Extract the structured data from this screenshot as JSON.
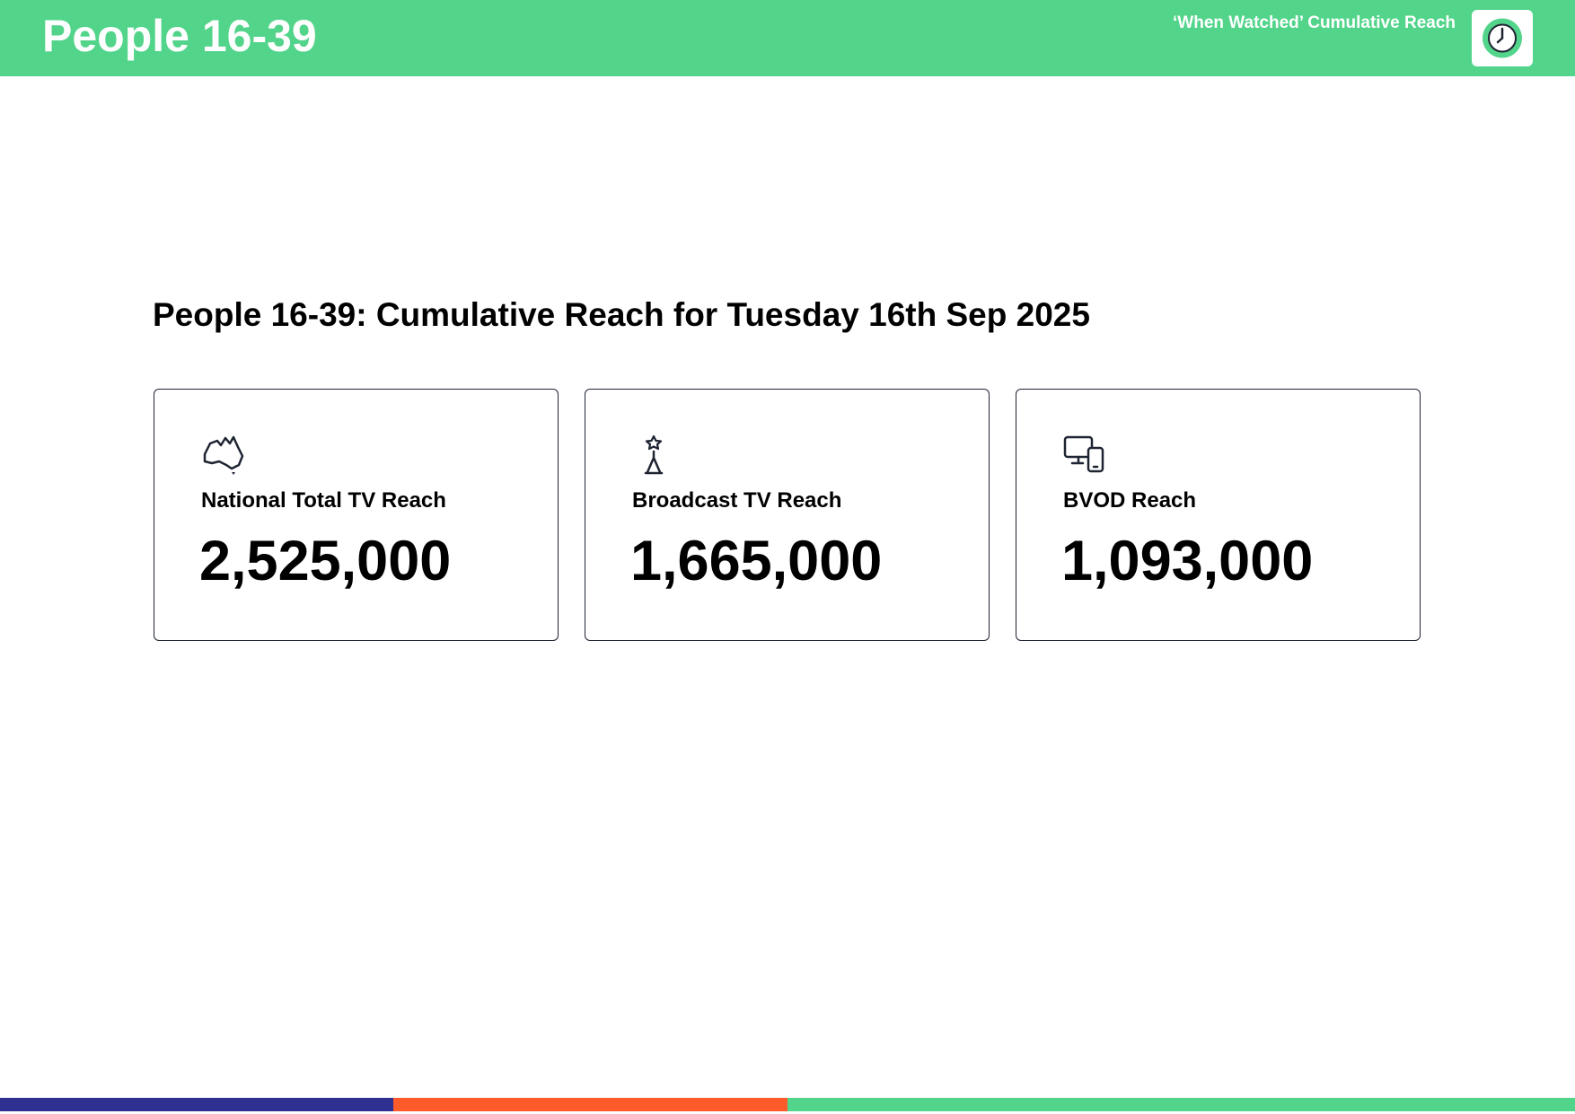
{
  "header": {
    "title": "People 16-39",
    "subtitle": "‘When Watched’ Cumulative Reach"
  },
  "heading": "People 16-39: Cumulative Reach for Tuesday 16th Sep 2025",
  "cards": [
    {
      "label": "National Total TV Reach",
      "value": "2,525,000"
    },
    {
      "label": "Broadcast TV Reach",
      "value": "1,665,000"
    },
    {
      "label": "BVOD Reach",
      "value": "1,093,000"
    }
  ]
}
